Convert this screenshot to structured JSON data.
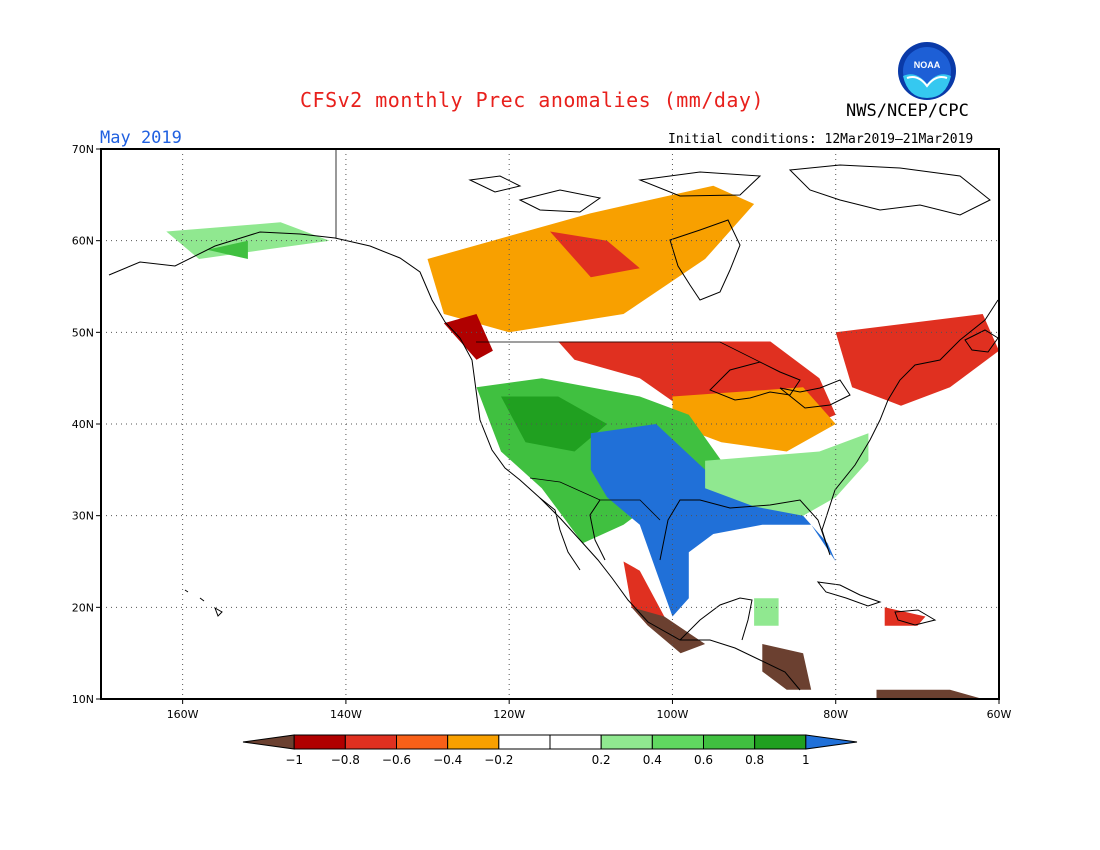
{
  "header": {
    "title": "CFSv2 monthly Prec anomalies (mm/day)",
    "agency": "NWS/NCEP/CPC",
    "logo_text": "NOAA",
    "month": "May 2019",
    "initial_conditions": "Initial conditions: 12Mar2019–21Mar2019"
  },
  "map": {
    "lon_range": [
      -170,
      -60
    ],
    "lat_range": [
      10,
      70
    ],
    "lon_ticks": [
      {
        "value": -160,
        "label": "160W"
      },
      {
        "value": -140,
        "label": "140W"
      },
      {
        "value": -120,
        "label": "120W"
      },
      {
        "value": -100,
        "label": "100W"
      },
      {
        "value": -80,
        "label": "80W"
      },
      {
        "value": -60,
        "label": "60W"
      }
    ],
    "lat_ticks": [
      {
        "value": 10,
        "label": "10N"
      },
      {
        "value": 20,
        "label": "20N"
      },
      {
        "value": 30,
        "label": "30N"
      },
      {
        "value": 40,
        "label": "40N"
      },
      {
        "value": 50,
        "label": "50N"
      },
      {
        "value": 60,
        "label": "60N"
      },
      {
        "value": 70,
        "label": "70N"
      }
    ],
    "gridlines": "dotted",
    "anomaly_regions": [
      {
        "name": "northern-plains-great-lakes-dry",
        "color": "#e03020",
        "polygon": [
          [
            -114,
            49
          ],
          [
            -88,
            49
          ],
          [
            -82,
            45
          ],
          [
            -80,
            41
          ],
          [
            -88,
            38
          ],
          [
            -96,
            40
          ],
          [
            -104,
            45
          ],
          [
            -112,
            47
          ]
        ]
      },
      {
        "name": "midwest-orange",
        "color": "#f8a000",
        "polygon": [
          [
            -100,
            43
          ],
          [
            -84,
            44
          ],
          [
            -80,
            40
          ],
          [
            -86,
            37
          ],
          [
            -94,
            38
          ],
          [
            -100,
            40
          ]
        ]
      },
      {
        "name": "quebec-dry",
        "color": "#e03020",
        "polygon": [
          [
            -80,
            50
          ],
          [
            -62,
            52
          ],
          [
            -60,
            48
          ],
          [
            -66,
            44
          ],
          [
            -72,
            42
          ],
          [
            -78,
            44
          ]
        ]
      },
      {
        "name": "canada-orange",
        "color": "#f8a000",
        "polygon": [
          [
            -130,
            58
          ],
          [
            -110,
            63
          ],
          [
            -95,
            66
          ],
          [
            -90,
            64
          ],
          [
            -96,
            58
          ],
          [
            -106,
            52
          ],
          [
            -120,
            50
          ],
          [
            -128,
            52
          ]
        ]
      },
      {
        "name": "canada-red-patch",
        "color": "#e03020",
        "polygon": [
          [
            -115,
            61
          ],
          [
            -108,
            60
          ],
          [
            -104,
            57
          ],
          [
            -110,
            56
          ]
        ]
      },
      {
        "name": "pacific-northwest-dry",
        "color": "#b00000",
        "polygon": [
          [
            -128,
            51
          ],
          [
            -124,
            52
          ],
          [
            -122,
            48
          ],
          [
            -124,
            47
          ]
        ]
      },
      {
        "name": "west-wet",
        "color": "#40c040",
        "polygon": [
          [
            -124,
            44
          ],
          [
            -116,
            45
          ],
          [
            -104,
            43
          ],
          [
            -98,
            41
          ],
          [
            -94,
            36
          ],
          [
            -100,
            33
          ],
          [
            -106,
            29
          ],
          [
            -111,
            27
          ],
          [
            -116,
            33
          ],
          [
            -121,
            37
          ]
        ]
      },
      {
        "name": "west-wet-dark",
        "color": "#20a020",
        "polygon": [
          [
            -121,
            43
          ],
          [
            -114,
            43
          ],
          [
            -108,
            40
          ],
          [
            -112,
            37
          ],
          [
            -118,
            38
          ]
        ]
      },
      {
        "name": "southern-plains-gulf-wet",
        "color": "#2070d8",
        "polygon": [
          [
            -110,
            39
          ],
          [
            -102,
            40
          ],
          [
            -96,
            35
          ],
          [
            -90,
            32
          ],
          [
            -84,
            30
          ],
          [
            -81,
            27
          ],
          [
            -80,
            25
          ],
          [
            -83,
            29
          ],
          [
            -89,
            29
          ],
          [
            -95,
            28
          ],
          [
            -98,
            26
          ],
          [
            -98,
            21
          ],
          [
            -100,
            19
          ],
          [
            -102,
            24
          ],
          [
            -104,
            29
          ],
          [
            -108,
            32
          ],
          [
            -110,
            35
          ]
        ]
      },
      {
        "name": "southeast-light-wet",
        "color": "#90e890",
        "polygon": [
          [
            -96,
            36
          ],
          [
            -82,
            37
          ],
          [
            -76,
            39
          ],
          [
            -76,
            36
          ],
          [
            -80,
            32
          ],
          [
            -84,
            30
          ],
          [
            -90,
            31
          ],
          [
            -96,
            33
          ]
        ]
      },
      {
        "name": "mexico-west-dry",
        "color": "#e03020",
        "polygon": [
          [
            -106,
            25
          ],
          [
            -104,
            24
          ],
          [
            -101,
            19
          ],
          [
            -103,
            18
          ],
          [
            -105,
            20
          ]
        ]
      },
      {
        "name": "mexico-southwest-very-dry",
        "color": "#6b4030",
        "polygon": [
          [
            -105,
            20
          ],
          [
            -101,
            19
          ],
          [
            -96,
            16
          ],
          [
            -99,
            15
          ],
          [
            -103,
            18
          ]
        ]
      },
      {
        "name": "central-america-very-dry",
        "color": "#6b4030",
        "polygon": [
          [
            -89,
            16
          ],
          [
            -84,
            15
          ],
          [
            -83,
            11
          ],
          [
            -86,
            11
          ],
          [
            -89,
            13
          ]
        ]
      },
      {
        "name": "yucatan-wet",
        "color": "#90e890",
        "polygon": [
          [
            -90,
            21
          ],
          [
            -87,
            21
          ],
          [
            -87,
            18
          ],
          [
            -90,
            18
          ]
        ]
      },
      {
        "name": "alaska-light-wet",
        "color": "#90e890",
        "polygon": [
          [
            -162,
            61
          ],
          [
            -148,
            62
          ],
          [
            -142,
            60
          ],
          [
            -150,
            59
          ],
          [
            -158,
            58
          ]
        ]
      },
      {
        "name": "alaska-wet",
        "color": "#40c040",
        "polygon": [
          [
            -157,
            59
          ],
          [
            -152,
            60
          ],
          [
            -152,
            58
          ]
        ]
      },
      {
        "name": "hispaniola-dry",
        "color": "#e03020",
        "polygon": [
          [
            -74,
            20
          ],
          [
            -69,
            19
          ],
          [
            -70,
            18
          ],
          [
            -74,
            18
          ]
        ]
      },
      {
        "name": "venezuela-very-dry",
        "color": "#6b4030",
        "polygon": [
          [
            -75,
            11
          ],
          [
            -66,
            11
          ],
          [
            -62,
            10
          ],
          [
            -75,
            10
          ]
        ]
      }
    ],
    "colorbar": {
      "colors": [
        "#6b4030",
        "#b00000",
        "#e03020",
        "#f86018",
        "#f8a000",
        "#ffffff",
        "#ffffff",
        "#90e890",
        "#60d860",
        "#40c040",
        "#20a020",
        "#2070d8"
      ],
      "labels": [
        "−1",
        "−0.8",
        "−0.6",
        "−0.4",
        "−0.2",
        "0.2",
        "0.4",
        "0.6",
        "0.8",
        "1"
      ]
    }
  }
}
